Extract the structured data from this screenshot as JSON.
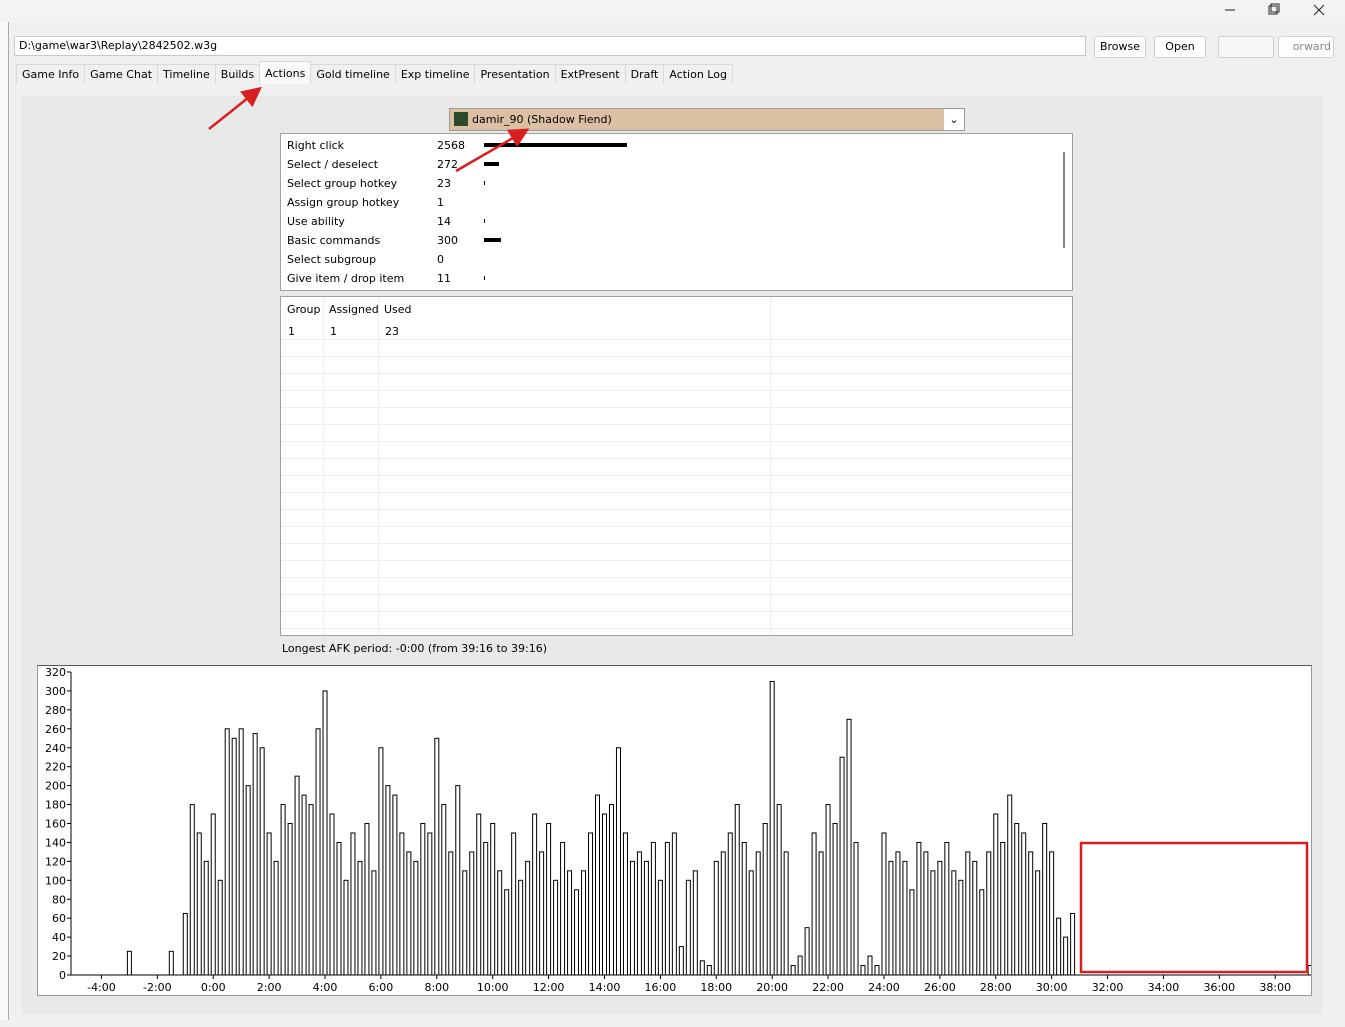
{
  "file_path": "D:\\game\\war3\\Replay\\2842502.w3g",
  "buttons": [
    "Browse",
    "Open",
    "orward"
  ],
  "tabs": [
    "Game Info",
    "Game Chat",
    "Timeline",
    "Builds",
    "Actions",
    "Gold timeline",
    "Exp timeline",
    "Presentation",
    "ExtPresent",
    "Draft",
    "Action Log"
  ],
  "active_tab": 4,
  "player": "damir_90 (Shadow Fiend)",
  "actions": [
    {
      "name": "Right click",
      "count": 2568
    },
    {
      "name": "Select / deselect",
      "count": 272
    },
    {
      "name": "Select group hotkey",
      "count": 23
    },
    {
      "name": "Assign group hotkey",
      "count": 1
    },
    {
      "name": "Use ability",
      "count": 14
    },
    {
      "name": "Basic commands",
      "count": 300
    },
    {
      "name": "Select subgroup",
      "count": 0
    },
    {
      "name": "Give item / drop item",
      "count": 11
    }
  ],
  "groups": {
    "headers": [
      "Group",
      "Assigned",
      "Used"
    ],
    "rows": [
      [
        1,
        1,
        23
      ]
    ]
  },
  "afk": "Longest AFK period: -0:00 (from 39:16 to 39:16)",
  "chart_data": {
    "type": "bar",
    "color": "#000000",
    "xlim": [
      -6.27,
      39.28
    ],
    "ylim": [
      0,
      320
    ],
    "yticks": [
      0,
      20,
      40,
      60,
      80,
      100,
      120,
      140,
      160,
      180,
      200,
      220,
      240,
      260,
      280,
      300,
      320
    ],
    "xticks": [
      {
        "value": -4,
        "label": "-4:00"
      },
      {
        "value": -2,
        "label": "-2:00"
      },
      {
        "value": 0,
        "label": "0:00"
      },
      {
        "value": 2,
        "label": "2:00"
      },
      {
        "value": 4,
        "label": "4:00"
      },
      {
        "value": 6,
        "label": "6:00"
      },
      {
        "value": 8,
        "label": "8:00"
      },
      {
        "value": 10,
        "label": "10:00"
      },
      {
        "value": 12,
        "label": "12:00"
      },
      {
        "value": 14,
        "label": "14:00"
      },
      {
        "value": 16,
        "label": "16:00"
      },
      {
        "value": 18,
        "label": "18:00"
      },
      {
        "value": 20,
        "label": "20:00"
      },
      {
        "value": 22,
        "label": "22:00"
      },
      {
        "value": 24,
        "label": "24:00"
      },
      {
        "value": 26,
        "label": "26:00"
      },
      {
        "value": 28,
        "label": "28:00"
      },
      {
        "value": 30,
        "label": "30:00"
      },
      {
        "value": 32,
        "label": "32:00"
      },
      {
        "value": 34,
        "label": "34:00"
      },
      {
        "value": 36,
        "label": "36:00"
      },
      {
        "value": 38,
        "label": "38:00"
      }
    ],
    "x": [
      -3,
      -1.5,
      -1,
      -0.75,
      -0.5,
      -0.25,
      0,
      0.25,
      0.5,
      0.75,
      1,
      1.25,
      1.5,
      1.75,
      2,
      2.25,
      2.5,
      2.75,
      3,
      3.25,
      3.5,
      3.75,
      4,
      4.25,
      4.5,
      4.75,
      5,
      5.25,
      5.5,
      5.75,
      6,
      6.25,
      6.5,
      6.75,
      7,
      7.25,
      7.5,
      7.75,
      8,
      8.25,
      8.5,
      8.75,
      9,
      9.25,
      9.5,
      9.75,
      10,
      10.25,
      10.5,
      10.75,
      11,
      11.25,
      11.5,
      11.75,
      12,
      12.25,
      12.5,
      12.75,
      13,
      13.25,
      13.5,
      13.75,
      14,
      14.25,
      14.5,
      14.75,
      15,
      15.25,
      15.5,
      15.75,
      16,
      16.25,
      16.5,
      16.75,
      17,
      17.25,
      17.5,
      17.75,
      18,
      18.25,
      18.5,
      18.75,
      19,
      19.25,
      19.5,
      19.75,
      20,
      20.25,
      20.5,
      20.75,
      21,
      21.25,
      21.5,
      21.75,
      22,
      22.25,
      22.5,
      22.75,
      23,
      23.25,
      23.5,
      23.75,
      24,
      24.25,
      24.5,
      24.75,
      25,
      25.25,
      25.5,
      25.75,
      26,
      26.25,
      26.5,
      26.75,
      27,
      27.25,
      27.5,
      27.75,
      28,
      28.25,
      28.5,
      28.75,
      29,
      29.25,
      29.5,
      29.75,
      30,
      30.25,
      30.5,
      30.75,
      39.25
    ],
    "values": [
      25,
      25,
      65,
      180,
      150,
      120,
      170,
      100,
      260,
      250,
      260,
      200,
      255,
      240,
      150,
      120,
      180,
      160,
      210,
      190,
      180,
      260,
      300,
      170,
      140,
      100,
      150,
      120,
      160,
      110,
      240,
      200,
      190,
      150,
      130,
      120,
      160,
      150,
      250,
      180,
      130,
      200,
      110,
      130,
      170,
      140,
      160,
      110,
      90,
      150,
      100,
      120,
      170,
      130,
      160,
      100,
      140,
      110,
      90,
      110,
      150,
      190,
      170,
      180,
      240,
      150,
      120,
      130,
      120,
      140,
      100,
      140,
      150,
      30,
      100,
      110,
      15,
      10,
      120,
      130,
      150,
      180,
      140,
      110,
      130,
      160,
      310,
      180,
      130,
      10,
      20,
      50,
      150,
      130,
      180,
      160,
      230,
      270,
      140,
      10,
      20,
      10,
      150,
      120,
      130,
      120,
      90,
      140,
      130,
      110,
      120,
      140,
      110,
      100,
      130,
      120,
      90,
      130,
      170,
      140,
      190,
      160,
      150,
      130,
      110,
      160,
      130,
      60,
      40,
      65,
      10
    ]
  }
}
